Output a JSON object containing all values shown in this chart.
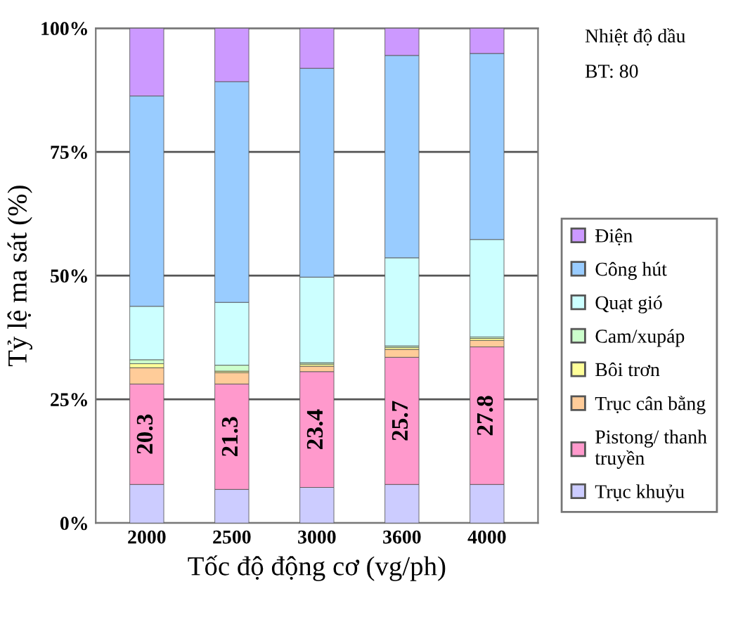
{
  "chart_data": {
    "type": "bar",
    "stacked": true,
    "xlabel": "Tốc độ động cơ (vg/ph)",
    "ylabel": "Tỷ lệ ma sát (%)",
    "categories": [
      "2000",
      "2500",
      "3000",
      "3600",
      "4000"
    ],
    "series": [
      {
        "name": "Trục khuỷu",
        "color": "#ccccff",
        "values": [
          7.8,
          6.8,
          7.2,
          7.8,
          7.8
        ]
      },
      {
        "name": "Pistong/ thanh\ntruyền",
        "color": "#ff99cc",
        "values": [
          20.3,
          21.3,
          23.4,
          25.7,
          27.8
        ],
        "value_labels": [
          "20.3",
          "21.3",
          "23.4",
          "25.7",
          "27.8"
        ]
      },
      {
        "name": "Trục cân bằng",
        "color": "#ffcc99",
        "values": [
          3.3,
          2.3,
          1.1,
          1.6,
          1.3
        ]
      },
      {
        "name": "Bôi trơn",
        "color": "#ffff99",
        "values": [
          0.8,
          0.3,
          0.4,
          0.4,
          0.4
        ]
      },
      {
        "name": "Cam/xupáp",
        "color": "#ccffcc",
        "values": [
          0.8,
          1.2,
          0.3,
          0.3,
          0.3
        ]
      },
      {
        "name": "Quạt gió",
        "color": "#ccffff",
        "values": [
          10.8,
          12.7,
          17.3,
          17.8,
          19.7
        ]
      },
      {
        "name": "Công hút",
        "color": "#99ccff",
        "values": [
          42.5,
          44.6,
          42.2,
          40.9,
          37.6
        ]
      },
      {
        "name": "Điện",
        "color": "#cc99ff",
        "values": [
          13.7,
          10.8,
          8.1,
          5.5,
          5.1
        ]
      }
    ],
    "ylim": [
      0,
      100
    ],
    "yticks": [
      {
        "value": 0,
        "label": "0%"
      },
      {
        "value": 25,
        "label": "25%"
      },
      {
        "value": 50,
        "label": "50%"
      },
      {
        "value": 75,
        "label": "75%"
      },
      {
        "value": 100,
        "label": "100%"
      }
    ],
    "grid": "y",
    "legend": "right",
    "annotations": [
      "Nhiệt độ dầu",
      "BT: 80"
    ]
  }
}
